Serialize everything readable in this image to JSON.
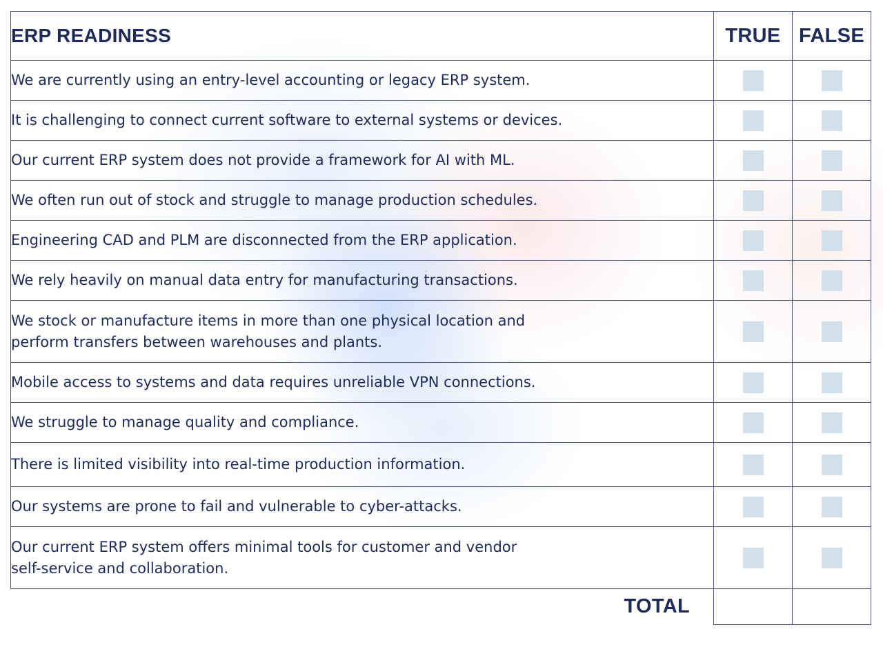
{
  "header": {
    "title": "ERP READINESS",
    "true_label": "TRUE",
    "false_label": "FALSE"
  },
  "rows": [
    {
      "text": "We are currently using an entry-level accounting or legacy ERP system."
    },
    {
      "text": "It is challenging to connect current software to external systems or devices."
    },
    {
      "text": "Our current ERP system does not provide a framework for AI with ML."
    },
    {
      "text": "We often run out of stock and struggle to manage production schedules."
    },
    {
      "text": "Engineering CAD and PLM are disconnected from the ERP application."
    },
    {
      "text": "We rely heavily on manual data entry for manufacturing transactions."
    },
    {
      "text_line1": "We stock or manufacture items in more than one physical location and",
      "text_line2": "perform transfers between warehouses and plants."
    },
    {
      "text": "Mobile access to systems and data requires unreliable VPN connections."
    },
    {
      "text": "We struggle to manage quality and compliance."
    },
    {
      "text": "There is limited visibility into real-time production information."
    },
    {
      "text": "Our systems are prone to fail and vulnerable to cyber-attacks."
    },
    {
      "text_line1": "Our current ERP system offers minimal tools for customer and vendor",
      "text_line2": "self-service and collaboration."
    }
  ],
  "footer": {
    "total_label": "TOTAL"
  },
  "colors": {
    "text": "#1e2a5a",
    "border": "#4a5680",
    "checkbox": "#d2e0ec"
  }
}
